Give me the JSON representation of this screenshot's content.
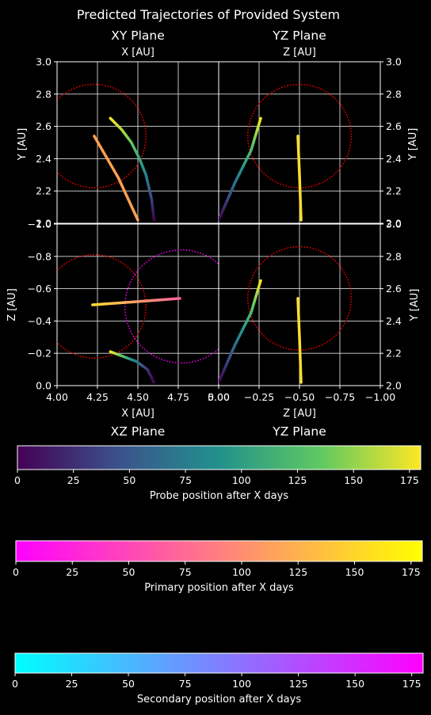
{
  "figure": {
    "title": "Predicted Trajectories of Provided System"
  },
  "panels": {
    "xy": {
      "title": "XY Plane",
      "top_label": "X [AU]",
      "left_label": "Y [AU]",
      "right_label": "Y [AU]"
    },
    "yz": {
      "title": "YZ Plane",
      "top_label": "Z [AU]",
      "left_label": "",
      "right_label": "Y [AU]"
    },
    "xz": {
      "title": "XZ Plane",
      "bottom_label": "X [AU]",
      "left_label": "Z [AU]"
    },
    "yz2": {
      "title": "YZ Plane",
      "bottom_label": "Z [AU]",
      "right_label": "Y [AU]"
    }
  },
  "colorbars": [
    {
      "label": "Probe position after X days",
      "colormap": "viridis"
    },
    {
      "label": "Primary position after X days",
      "colormap": "spring"
    },
    {
      "label": "Secondary position after X days",
      "colormap": "cool"
    }
  ],
  "chart_data": [
    {
      "type": "line",
      "title": "XY Plane",
      "xlabel": "X [AU]",
      "ylabel": "Y [AU]",
      "xlim": [
        4.0,
        5.0
      ],
      "ylim": [
        2.0,
        3.0
      ],
      "x_ticks": [
        "4.00",
        "4.25",
        "4.50",
        "4.75",
        "5.00"
      ],
      "y_ticks": [
        "2.0",
        "2.2",
        "2.4",
        "2.6",
        "2.8",
        "3.0"
      ],
      "grid": true,
      "series": [
        {
          "role": "probe",
          "colormap": "viridis",
          "x": [
            4.6,
            4.585,
            4.55,
            4.51,
            4.46,
            4.4,
            4.33
          ],
          "y": [
            2.02,
            2.15,
            2.3,
            2.4,
            2.5,
            2.58,
            2.65
          ]
        },
        {
          "role": "body",
          "color": "#ffa050",
          "x": [
            4.5,
            4.38,
            4.23
          ],
          "y": [
            2.02,
            2.28,
            2.54
          ]
        }
      ],
      "circles": [
        {
          "color": "#ff0000",
          "center": [
            4.23,
            2.54
          ],
          "radius": 0.32
        }
      ]
    },
    {
      "type": "line",
      "title": "YZ Plane",
      "xlabel": "Z [AU]",
      "ylabel": "Y [AU]",
      "xlim": [
        0.0,
        -1.0
      ],
      "ylim": [
        2.0,
        3.0
      ],
      "x_ticks": [
        "0.00",
        "−0.25",
        "−0.50",
        "−0.75",
        "−1.00"
      ],
      "y_ticks": [
        "2.0",
        "2.2",
        "2.4",
        "2.6",
        "2.8",
        "3.0"
      ],
      "grid": true,
      "series": [
        {
          "role": "probe",
          "colormap": "viridis",
          "x": [
            0.0,
            -0.1,
            -0.2,
            -0.26
          ],
          "y": [
            2.02,
            2.25,
            2.45,
            2.65
          ]
        },
        {
          "role": "body",
          "color": "#ffdd30",
          "x": [
            -0.49,
            -0.5,
            -0.51
          ],
          "y": [
            2.54,
            2.3,
            2.02
          ]
        }
      ],
      "circles": [
        {
          "color": "#ff0000",
          "center": [
            -0.5,
            2.54
          ],
          "radius": 0.32
        }
      ]
    },
    {
      "type": "line",
      "title": "XZ Plane",
      "xlabel": "X [AU]",
      "ylabel": "Z [AU]",
      "xlim": [
        4.0,
        5.0
      ],
      "ylim": [
        0.0,
        -1.0
      ],
      "x_ticks": [
        "4.00",
        "4.25",
        "4.50",
        "4.75",
        "5.00"
      ],
      "y_ticks": [
        "0.0",
        "−0.2",
        "−0.4",
        "−0.6",
        "−0.8",
        "−1.0"
      ],
      "grid": true,
      "series": [
        {
          "role": "probe",
          "colormap": "viridis",
          "x": [
            4.6,
            4.56,
            4.49,
            4.41,
            4.33
          ],
          "y": [
            -0.02,
            -0.1,
            -0.15,
            -0.18,
            -0.21
          ]
        },
        {
          "role": "body",
          "color": "#ff60a0",
          "x": [
            4.22,
            4.5,
            4.76
          ],
          "y": [
            -0.5,
            -0.52,
            -0.54
          ]
        }
      ],
      "circles": [
        {
          "color": "#ff0000",
          "center": [
            4.23,
            -0.49
          ],
          "radius": 0.32
        },
        {
          "color": "#ff00ff",
          "center": [
            4.77,
            -0.49
          ],
          "radius": 0.35
        }
      ]
    },
    {
      "type": "line",
      "title": "YZ Plane",
      "xlabel": "Z [AU]",
      "ylabel": "Y [AU]",
      "xlim": [
        0.0,
        -1.0
      ],
      "ylim": [
        2.0,
        3.0
      ],
      "x_ticks": [
        "0.00",
        "−0.25",
        "−0.50",
        "−0.75",
        "−1.00"
      ],
      "y_ticks": [
        "2.0",
        "2.2",
        "2.4",
        "2.6",
        "2.8",
        "3.0"
      ],
      "grid": true,
      "series": [
        {
          "role": "probe",
          "colormap": "viridis",
          "x": [
            0.0,
            -0.1,
            -0.2,
            -0.26
          ],
          "y": [
            2.02,
            2.25,
            2.45,
            2.65
          ]
        },
        {
          "role": "body",
          "color": "#ffdd30",
          "x": [
            -0.49,
            -0.5,
            -0.51
          ],
          "y": [
            2.54,
            2.3,
            2.02
          ]
        }
      ],
      "circles": [
        {
          "color": "#ff0000",
          "center": [
            -0.5,
            2.54
          ],
          "radius": 0.32
        }
      ]
    },
    {
      "type": "colorbar",
      "label": "Probe position after X days",
      "range": [
        0,
        180
      ],
      "ticks": [
        "0",
        "25",
        "50",
        "75",
        "100",
        "125",
        "150",
        "175"
      ],
      "colormap": "viridis"
    },
    {
      "type": "colorbar",
      "label": "Primary position after X days",
      "range": [
        0,
        180
      ],
      "ticks": [
        "0",
        "25",
        "50",
        "75",
        "100",
        "125",
        "150",
        "175"
      ],
      "colormap": "spring"
    },
    {
      "type": "colorbar",
      "label": "Secondary position after X days",
      "range": [
        0,
        180
      ],
      "ticks": [
        "0",
        "25",
        "50",
        "75",
        "100",
        "125",
        "150",
        "175"
      ],
      "colormap": "cool"
    }
  ]
}
